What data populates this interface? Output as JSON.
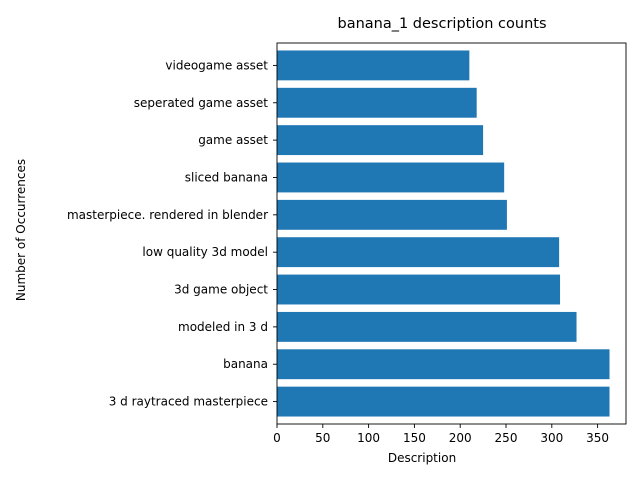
{
  "chart_data": {
    "type": "bar",
    "orientation": "horizontal",
    "title": "banana_1 description counts",
    "xlabel": "Description",
    "ylabel": "Number of Occurrences",
    "categories": [
      "3 d raytraced masterpiece",
      "banana",
      "modeled in 3 d",
      "3d game object",
      "low quality 3d model",
      "masterpiece. rendered in blender",
      "sliced banana",
      "game asset",
      "seperated game asset",
      "videogame asset"
    ],
    "values": [
      363,
      363,
      327,
      309,
      308,
      251,
      248,
      225,
      218,
      210
    ],
    "xlim": [
      0,
      381
    ],
    "xticks": [
      0,
      50,
      100,
      150,
      200,
      250,
      300,
      350
    ],
    "grid": false,
    "bar_color": "#1f77b4"
  }
}
